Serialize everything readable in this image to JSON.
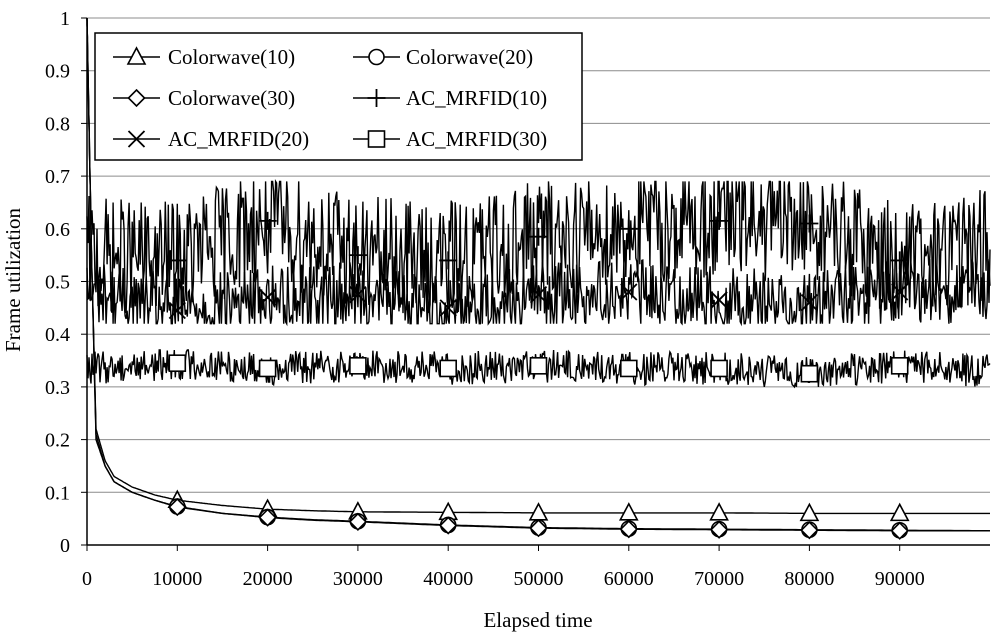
{
  "chart_data": {
    "type": "line",
    "title": "",
    "xlabel": "Elapsed time",
    "ylabel": "Frame utilization",
    "xlim": [
      0,
      100000
    ],
    "ylim": [
      0,
      1
    ],
    "xticks": [
      0,
      10000,
      20000,
      30000,
      40000,
      50000,
      60000,
      70000,
      80000,
      90000
    ],
    "xtick_labels": [
      "0",
      "10000",
      "20000",
      "30000",
      "40000",
      "50000",
      "60000",
      "70000",
      "80000",
      "90000"
    ],
    "yticks": [
      0,
      0.1,
      0.2,
      0.3,
      0.4,
      0.5,
      0.6,
      0.7,
      0.8,
      0.9,
      1
    ],
    "ytick_labels": [
      "0",
      "0.1",
      "0.2",
      "0.3",
      "0.4",
      "0.5",
      "0.6",
      "0.7",
      "0.8",
      "0.9",
      "1"
    ],
    "grid": "horizontal",
    "legend_position": "top-left",
    "series": [
      {
        "name": "Colorwave(10)",
        "marker": "triangle",
        "x": [
          0,
          500,
          1000,
          2000,
          3000,
          5000,
          7500,
          10000,
          15000,
          20000,
          25000,
          30000,
          40000,
          50000,
          60000,
          70000,
          80000,
          90000,
          100000
        ],
        "y": [
          1.0,
          0.55,
          0.22,
          0.16,
          0.13,
          0.11,
          0.095,
          0.085,
          0.075,
          0.068,
          0.065,
          0.063,
          0.062,
          0.061,
          0.061,
          0.061,
          0.06,
          0.06,
          0.06
        ]
      },
      {
        "name": "Colorwave(20)",
        "marker": "circle",
        "x": [
          0,
          500,
          1000,
          2000,
          3000,
          5000,
          7500,
          10000,
          15000,
          20000,
          25000,
          30000,
          40000,
          50000,
          60000,
          70000,
          80000,
          90000,
          100000
        ],
        "y": [
          1.0,
          0.55,
          0.21,
          0.15,
          0.12,
          0.1,
          0.085,
          0.073,
          0.06,
          0.053,
          0.048,
          0.045,
          0.038,
          0.033,
          0.031,
          0.03,
          0.029,
          0.028,
          0.027
        ]
      },
      {
        "name": "Colorwave(30)",
        "marker": "diamond",
        "x": [
          0,
          500,
          1000,
          2000,
          3000,
          5000,
          7500,
          10000,
          15000,
          20000,
          25000,
          30000,
          40000,
          50000,
          60000,
          70000,
          80000,
          90000,
          100000
        ],
        "y": [
          1.0,
          0.55,
          0.2,
          0.15,
          0.12,
          0.1,
          0.085,
          0.072,
          0.06,
          0.052,
          0.047,
          0.044,
          0.037,
          0.032,
          0.03,
          0.029,
          0.028,
          0.027,
          0.027
        ]
      },
      {
        "name": "AC_MRFID(10)",
        "marker": "plus",
        "x": [
          0,
          10000,
          20000,
          30000,
          40000,
          50000,
          60000,
          70000,
          80000,
          90000,
          100000
        ],
        "y": [
          0.55,
          0.54,
          0.615,
          0.55,
          0.54,
          0.585,
          0.6,
          0.615,
          0.61,
          0.54,
          0.57
        ],
        "noise_range": [
          0.44,
          0.69
        ]
      },
      {
        "name": "AC_MRFID(20)",
        "marker": "x",
        "x": [
          0,
          10000,
          20000,
          30000,
          40000,
          50000,
          60000,
          70000,
          80000,
          90000,
          100000
        ],
        "y": [
          0.48,
          0.445,
          0.47,
          0.475,
          0.45,
          0.475,
          0.48,
          0.465,
          0.46,
          0.48,
          0.48
        ],
        "noise_range": [
          0.42,
          0.56
        ]
      },
      {
        "name": "AC_MRFID(30)",
        "marker": "square",
        "x": [
          0,
          10000,
          20000,
          30000,
          40000,
          50000,
          60000,
          70000,
          80000,
          90000,
          100000
        ],
        "y": [
          0.335,
          0.345,
          0.335,
          0.34,
          0.335,
          0.34,
          0.335,
          0.335,
          0.325,
          0.34,
          0.33
        ],
        "noise_range": [
          0.3,
          0.37
        ]
      }
    ]
  }
}
